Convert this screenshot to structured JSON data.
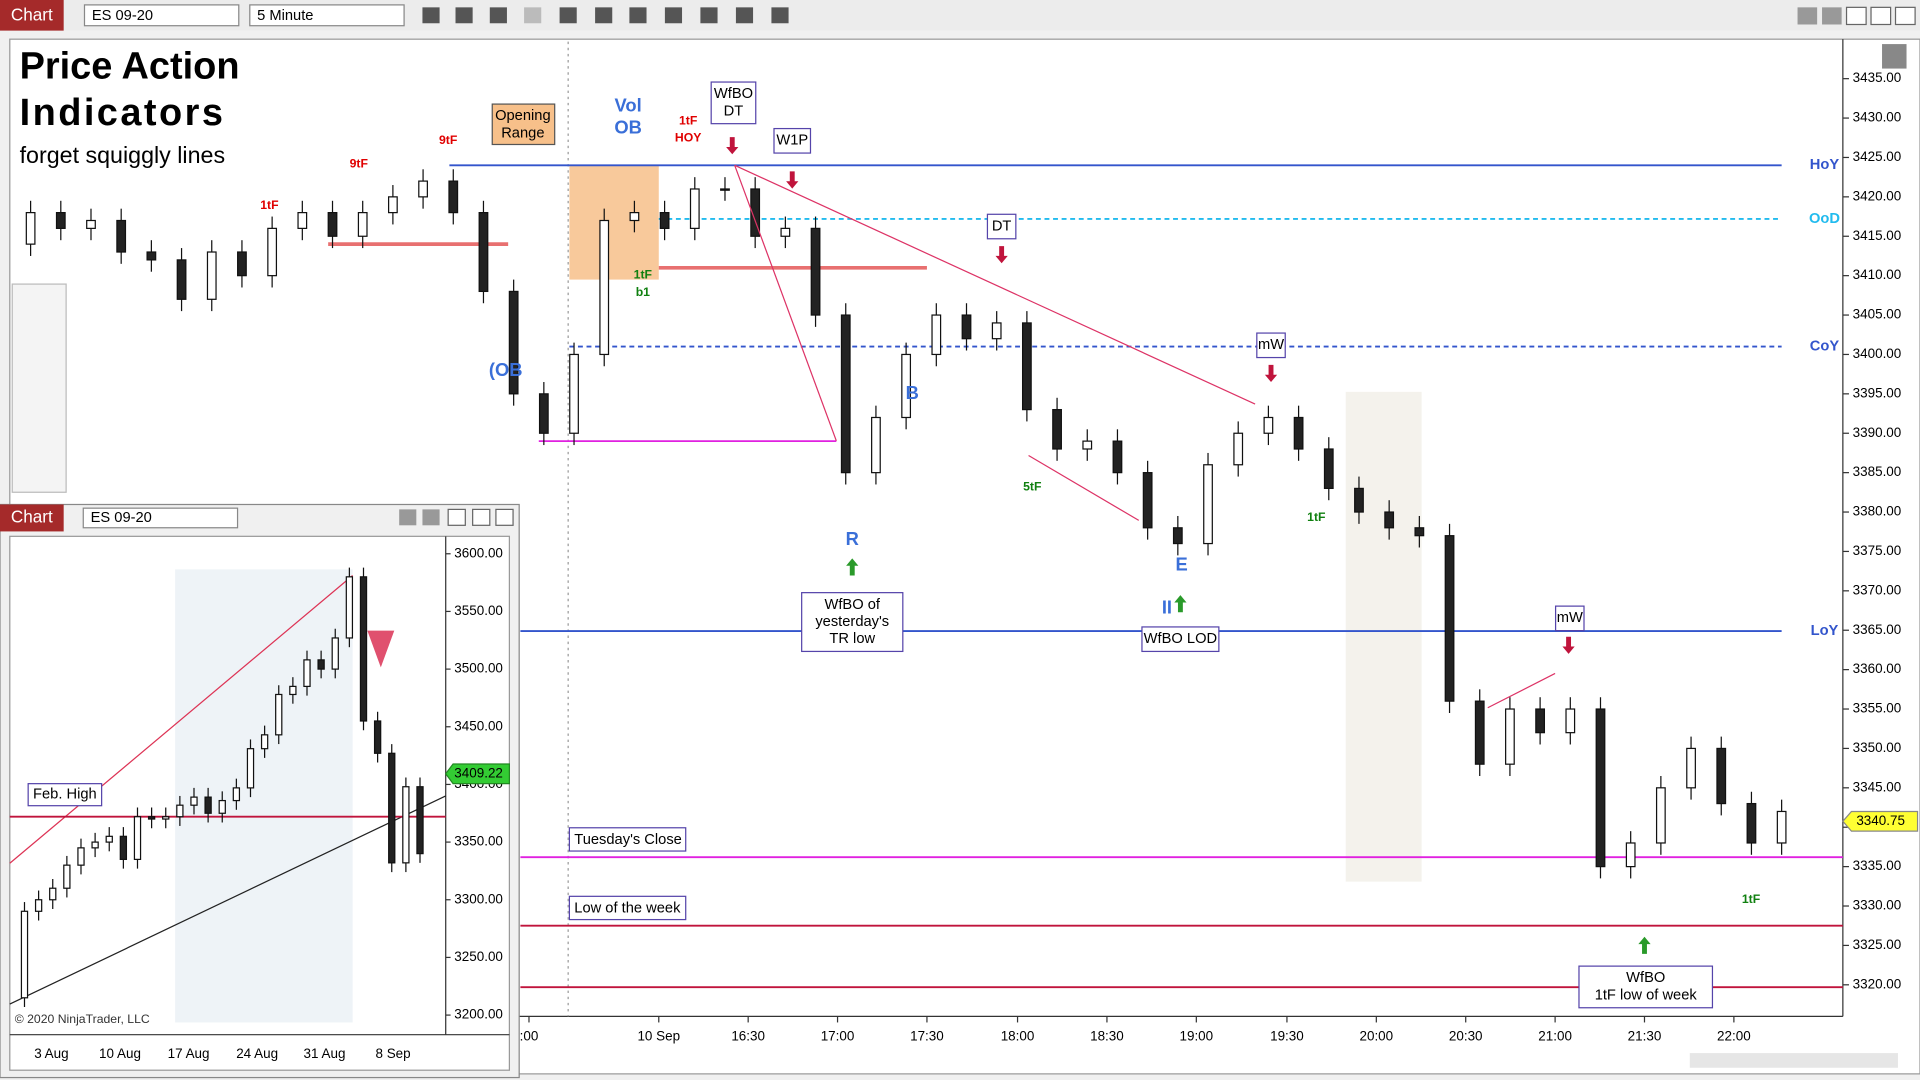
{
  "toolbar": {
    "tab": "Chart",
    "instrument": "ES 09-20",
    "interval": "5 Minute"
  },
  "chart_data": {
    "type": "candlestick",
    "title": [
      "Price Action",
      "Indicators"
    ],
    "subtitle": "forget squiggly lines",
    "ylim": [
      3316,
      3439.7
    ],
    "yticks": [
      {
        "value": 3320,
        "label": "3320.00"
      },
      {
        "value": 3325,
        "label": "3325.00"
      },
      {
        "value": 3330,
        "label": "3330.00"
      },
      {
        "value": 3335,
        "label": "3335.00"
      },
      {
        "value": 3340,
        "label": "3340.00"
      },
      {
        "value": 3345,
        "label": "3345.00"
      },
      {
        "value": 3350,
        "label": "3350.00"
      },
      {
        "value": 3355,
        "label": "3355.00"
      },
      {
        "value": 3360,
        "label": "3360.00"
      },
      {
        "value": 3365,
        "label": "3365.00"
      },
      {
        "value": 3370,
        "label": "3370.00"
      },
      {
        "value": 3375,
        "label": "3375.00"
      },
      {
        "value": 3380,
        "label": "3380.00"
      },
      {
        "value": 3385,
        "label": "3385.00"
      },
      {
        "value": 3390,
        "label": "3390.00"
      },
      {
        "value": 3395,
        "label": "3395.00"
      },
      {
        "value": 3400,
        "label": "3400.00"
      },
      {
        "value": 3405,
        "label": "3405.00"
      },
      {
        "value": 3410,
        "label": "3410.00"
      },
      {
        "value": 3415,
        "label": "3415.00"
      },
      {
        "value": 3420,
        "label": "3420.00"
      },
      {
        "value": 3425,
        "label": "3425.00"
      },
      {
        "value": 3430,
        "label": "3430.00"
      },
      {
        "value": 3435,
        "label": "3435.00"
      }
    ],
    "x_labels": [
      ":00",
      "10 Sep",
      "16:30",
      "17:00",
      "17:30",
      "18:00",
      "18:30",
      "19:00",
      "19:30",
      "20:00",
      "20:30",
      "21:00",
      "21:30",
      "22:00"
    ],
    "open": [
      3414,
      3418,
      3416,
      3417,
      3413,
      3412,
      3407,
      3413,
      3410,
      3416,
      3418,
      3415,
      3418,
      3420,
      3422,
      3418,
      3408,
      3395,
      3390,
      3400,
      3417,
      3418,
      3416,
      3421,
      3421,
      3415,
      3416,
      3405,
      3385,
      3392,
      3400,
      3405,
      3402,
      3404,
      3393,
      3388,
      3389,
      3385,
      3378,
      3376,
      3386,
      3390,
      3392,
      3388,
      3383,
      3380,
      3378,
      3377,
      3356,
      3348,
      3355,
      3352,
      3355,
      3335,
      3338,
      3345,
      3350,
      3343,
      3338
    ],
    "high": [
      3419.5,
      3419.5,
      3418.5,
      3418.5,
      3414.5,
      3413.5,
      3414.5,
      3414.5,
      3417.5,
      3419.5,
      3419.5,
      3419.5,
      3421.5,
      3423.5,
      3423.5,
      3419.5,
      3409.5,
      3396.5,
      3401.5,
      3418.5,
      3419.5,
      3419.5,
      3422.5,
      3422.5,
      3422.5,
      3417.5,
      3417.5,
      3406.5,
      3393.5,
      3401.5,
      3406.5,
      3406.5,
      3405.5,
      3405.5,
      3394.5,
      3390.5,
      3390.5,
      3386.5,
      3379.5,
      3387.5,
      3391.5,
      3393.5,
      3393.5,
      3389.5,
      3384.5,
      3381.5,
      3379.5,
      3378.5,
      3357.5,
      3356.5,
      3356.5,
      3356.5,
      3356.5,
      3339.5,
      3346.5,
      3351.5,
      3351.5,
      3344.5,
      3343.5
    ],
    "low": [
      3412.5,
      3414.5,
      3414.5,
      3411.5,
      3410.5,
      3405.5,
      3405.5,
      3408.5,
      3408.5,
      3414.5,
      3413.5,
      3413.5,
      3416.5,
      3418.5,
      3416.5,
      3406.5,
      3393.5,
      3388.5,
      3388.5,
      3398.5,
      3415.5,
      3414.5,
      3414.5,
      3419.5,
      3413.5,
      3413.5,
      3403.5,
      3383.5,
      3383.5,
      3390.5,
      3398.5,
      3400.5,
      3400.5,
      3391.5,
      3386.5,
      3386.5,
      3383.5,
      3376.5,
      3374.5,
      3374.5,
      3384.5,
      3388.5,
      3386.5,
      3381.5,
      3378.5,
      3376.5,
      3375.5,
      3354.5,
      3346.5,
      3346.5,
      3350.5,
      3350.5,
      3333.5,
      3333.5,
      3336.5,
      3343.5,
      3341.5,
      3336.5,
      3336.5
    ],
    "close": [
      3418,
      3416,
      3417,
      3413,
      3412,
      3407,
      3413,
      3410,
      3416,
      3418,
      3415,
      3418,
      3420,
      3422,
      3418,
      3408,
      3395,
      3390,
      3400,
      3417,
      3418,
      3416,
      3421,
      3421,
      3415,
      3416,
      3405,
      3385,
      3392,
      3400,
      3405,
      3402,
      3404,
      3393,
      3388,
      3389,
      3385,
      3378,
      3376,
      3386,
      3390,
      3392,
      3388,
      3383,
      3380,
      3378,
      3377,
      3356,
      3348,
      3355,
      3352,
      3355,
      3335,
      3338,
      3345,
      3350,
      3343,
      3338,
      3342
    ],
    "last_price": {
      "value": 3340.75,
      "label": "3340.75"
    },
    "opening_range": {
      "label": [
        "Opening",
        "Range"
      ],
      "low": 3409.5,
      "high": 3424,
      "color": "#f7c08a"
    },
    "levels": [
      {
        "label": "HoY",
        "value": 3424,
        "color": "#3355cc",
        "dashed": false
      },
      {
        "label": "OoD",
        "value": 3417.2,
        "color": "#22bbee",
        "dashed": true
      },
      {
        "label": "CoY",
        "value": 3401,
        "color": "#3355cc",
        "dashed": true
      },
      {
        "label": "LoY",
        "value": 3364.9,
        "color": "#3355cc",
        "dashed": false
      },
      {
        "label": "Tuesday's Close",
        "value": 3336.2,
        "color": "#e020e0",
        "dashed": false
      },
      {
        "label": "Low of the week",
        "value": 3327.5,
        "color": "#c0143c",
        "dashed": false
      },
      {
        "value": 3319.7,
        "color": "#c0143c",
        "dashed": false
      },
      {
        "value": 3389,
        "color": "#e020e0",
        "dashed": false
      },
      {
        "value": 3414,
        "color": "#e87070",
        "dashed": false
      },
      {
        "value": 3411,
        "color": "#e87070",
        "dashed": false
      }
    ],
    "annotations": [
      {
        "lines": [
          "Vol",
          "OB"
        ],
        "color": "#3a6fd8"
      },
      {
        "lines": [
          "WfBO",
          "DT"
        ],
        "color": "#000000"
      },
      {
        "lines": [
          "1tF",
          "HOY"
        ],
        "color": "#e00000"
      },
      {
        "lines": [
          "W1P"
        ],
        "color": "#000000"
      },
      {
        "lines": [
          "DT"
        ],
        "color": "#000000"
      },
      {
        "lines": [
          "mW"
        ],
        "color": "#000000"
      },
      {
        "lines": [
          "mW"
        ],
        "color": "#000000"
      },
      {
        "lines": [
          "9tF"
        ],
        "color": "#e00000"
      },
      {
        "lines": [
          "9tF"
        ],
        "color": "#e00000"
      },
      {
        "lines": [
          "1tF"
        ],
        "color": "#e00000"
      },
      {
        "lines": [
          "(OB"
        ],
        "color": "#3a6fd8"
      },
      {
        "lines": [
          "1tF",
          "b1"
        ],
        "color": "#108010"
      },
      {
        "lines": [
          "B"
        ],
        "color": "#3a6fd8"
      },
      {
        "lines": [
          "R"
        ],
        "color": "#3a6fd8"
      },
      {
        "lines": [
          "E"
        ],
        "color": "#3a6fd8"
      },
      {
        "lines": [
          "II"
        ],
        "color": "#3a6fd8"
      },
      {
        "lines": [
          "5tF"
        ],
        "color": "#108010"
      },
      {
        "lines": [
          "1tF"
        ],
        "color": "#108010"
      },
      {
        "lines": [
          "1tF"
        ],
        "color": "#108010"
      },
      {
        "lines": [
          "WfBO of",
          "yesterday's",
          "TR low"
        ],
        "color": "#000000"
      },
      {
        "lines": [
          "WfBO LOD"
        ],
        "color": "#000000"
      },
      {
        "lines": [
          "WfBO",
          "1tF low of week"
        ],
        "color": "#000000"
      }
    ]
  },
  "inset": {
    "toolbar": {
      "tab": "Chart",
      "instrument": "ES 09-20"
    },
    "ylim": [
      3183,
      3613
    ],
    "yticks": [
      {
        "value": 3200,
        "label": "3200.00"
      },
      {
        "value": 3250,
        "label": "3250.00"
      },
      {
        "value": 3300,
        "label": "3300.00"
      },
      {
        "value": 3350,
        "label": "3350.00"
      },
      {
        "value": 3400,
        "label": "3400.00"
      },
      {
        "value": 3450,
        "label": "3450.00"
      },
      {
        "value": 3500,
        "label": "3500.00"
      },
      {
        "value": 3550,
        "label": "3550.00"
      },
      {
        "value": 3600,
        "label": "3600.00"
      }
    ],
    "x_labels": [
      "3 Aug",
      "10 Aug",
      "17 Aug",
      "24 Aug",
      "31 Aug",
      "8 Sep"
    ],
    "open": [
      3215,
      3290,
      3300,
      3310,
      3330,
      3345,
      3350,
      3355,
      3335,
      3372,
      3370,
      3372,
      3382,
      3389,
      3375,
      3386,
      3397,
      3431,
      3443,
      3478,
      3485,
      3508,
      3500,
      3527,
      3580,
      3455,
      3427,
      3332,
      3398
    ],
    "high": [
      3298,
      3308,
      3318,
      3338,
      3353,
      3358,
      3363,
      3363,
      3380,
      3380,
      3380,
      3390,
      3397,
      3397,
      3394,
      3405,
      3439,
      3451,
      3486,
      3493,
      3516,
      3516,
      3535,
      3588,
      3588,
      3463,
      3435,
      3406,
      3406
    ],
    "low": [
      3207,
      3282,
      3292,
      3302,
      3322,
      3337,
      3342,
      3327,
      3327,
      3362,
      3362,
      3364,
      3374,
      3367,
      3367,
      3378,
      3389,
      3423,
      3435,
      3470,
      3477,
      3492,
      3492,
      3519,
      3447,
      3419,
      3324,
      3324,
      3332
    ],
    "close": [
      3290,
      3300,
      3310,
      3330,
      3345,
      3350,
      3355,
      3335,
      3372,
      3370,
      3372,
      3382,
      3389,
      3375,
      3386,
      3397,
      3431,
      3443,
      3478,
      3485,
      3508,
      3500,
      3527,
      3580,
      3455,
      3427,
      3332,
      3398,
      3340
    ],
    "level": {
      "label": "Feb. High",
      "value": 3372,
      "color": "#c0143c"
    },
    "last_price": {
      "value": 3409.22,
      "label": "3409.22"
    },
    "copyright": "© 2020 NinjaTrader, LLC"
  }
}
